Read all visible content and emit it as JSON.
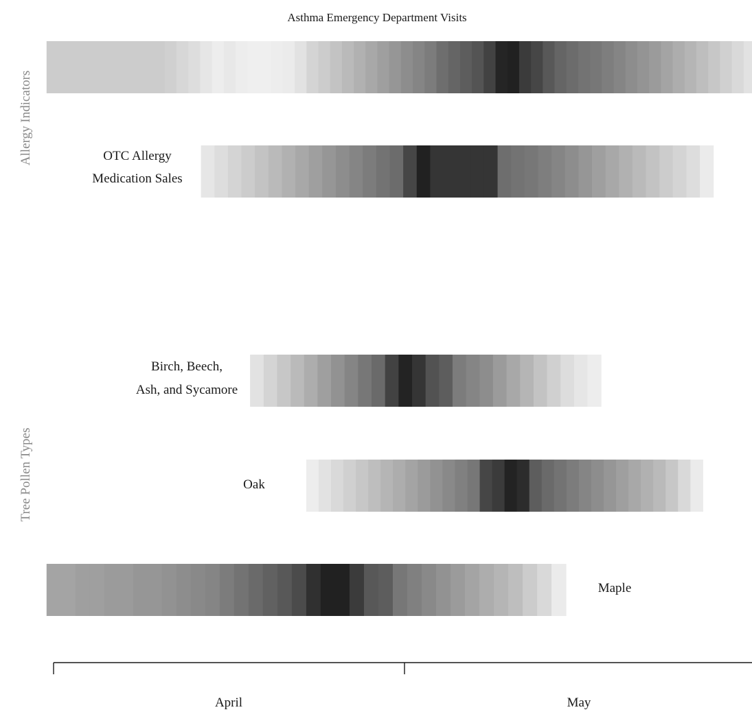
{
  "chart_data": {
    "type": "heatmap",
    "title": "",
    "group_labels": [
      "Allergy Indicators",
      "Tree Pollen Types"
    ],
    "x_axis": {
      "months": [
        "April",
        "May"
      ],
      "domain": [
        0,
        2
      ],
      "unit": "months (April 1 = 0, May 1 = 1, May 31 = 2)"
    },
    "series": [
      {
        "name": "Asthma Emergency Department Visits",
        "group": "Allergy Indicators",
        "start": -0.02,
        "end": 2.0,
        "shades": [
          0.2,
          0.2,
          0.2,
          0.2,
          0.2,
          0.2,
          0.2,
          0.2,
          0.2,
          0.2,
          0.18,
          0.15,
          0.12,
          0.08,
          0.05,
          0.07,
          0.05,
          0.04,
          0.04,
          0.05,
          0.06,
          0.1,
          0.16,
          0.2,
          0.24,
          0.28,
          0.32,
          0.36,
          0.4,
          0.44,
          0.48,
          0.52,
          0.56,
          0.62,
          0.66,
          0.7,
          0.74,
          0.82,
          0.95,
          0.97,
          0.85,
          0.8,
          0.72,
          0.66,
          0.63,
          0.6,
          0.58,
          0.55,
          0.52,
          0.48,
          0.45,
          0.42,
          0.38,
          0.34,
          0.3,
          0.26,
          0.22,
          0.18,
          0.14,
          0.1
        ]
      },
      {
        "name": "OTC Allergy Medication Sales",
        "group": "Allergy Indicators",
        "start": 0.42,
        "end": 1.88,
        "shades": [
          0.08,
          0.12,
          0.16,
          0.2,
          0.24,
          0.28,
          0.32,
          0.36,
          0.4,
          0.44,
          0.48,
          0.52,
          0.56,
          0.6,
          0.63,
          0.8,
          0.97,
          0.88,
          0.88,
          0.88,
          0.88,
          0.88,
          0.62,
          0.6,
          0.58,
          0.55,
          0.52,
          0.48,
          0.44,
          0.4,
          0.36,
          0.32,
          0.28,
          0.24,
          0.2,
          0.16,
          0.12,
          0.06
        ]
      },
      {
        "name": "Birch, Beech, Ash, and Sycamore",
        "group": "Tree Pollen Types",
        "start": 0.56,
        "end": 1.56,
        "shades": [
          0.1,
          0.16,
          0.22,
          0.28,
          0.34,
          0.4,
          0.46,
          0.52,
          0.58,
          0.64,
          0.82,
          0.96,
          0.88,
          0.75,
          0.7,
          0.56,
          0.52,
          0.48,
          0.42,
          0.36,
          0.3,
          0.24,
          0.18,
          0.12,
          0.08,
          0.05
        ]
      },
      {
        "name": "Oak",
        "group": "Tree Pollen Types",
        "start": 0.72,
        "end": 1.85,
        "shades": [
          0.05,
          0.1,
          0.14,
          0.18,
          0.22,
          0.26,
          0.3,
          0.34,
          0.38,
          0.42,
          0.46,
          0.5,
          0.54,
          0.58,
          0.8,
          0.85,
          0.96,
          0.92,
          0.7,
          0.64,
          0.6,
          0.56,
          0.52,
          0.48,
          0.44,
          0.4,
          0.36,
          0.32,
          0.28,
          0.22,
          0.14,
          0.06
        ]
      },
      {
        "name": "Maple",
        "group": "Tree Pollen Types",
        "start": -0.02,
        "end": 1.46,
        "shades": [
          0.38,
          0.38,
          0.4,
          0.4,
          0.42,
          0.42,
          0.44,
          0.44,
          0.46,
          0.48,
          0.5,
          0.52,
          0.56,
          0.6,
          0.64,
          0.68,
          0.72,
          0.78,
          0.9,
          0.97,
          0.97,
          0.85,
          0.72,
          0.7,
          0.58,
          0.54,
          0.5,
          0.46,
          0.42,
          0.38,
          0.34,
          0.3,
          0.26,
          0.2,
          0.14,
          0.06
        ]
      }
    ]
  }
}
